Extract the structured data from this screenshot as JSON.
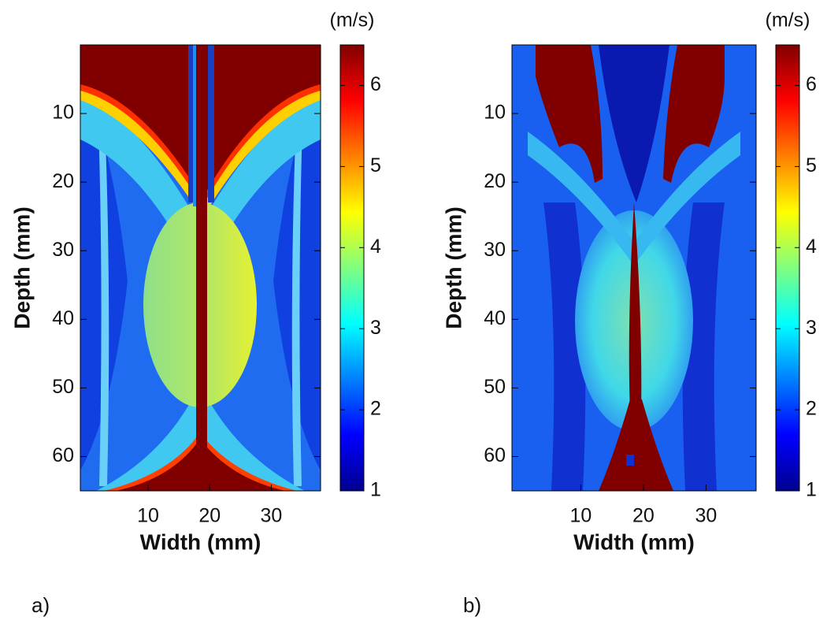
{
  "chart_data": [
    {
      "type": "heatmap",
      "panel_label": "a)",
      "xlabel": "Width (mm)",
      "ylabel": "Depth (mm)",
      "colorbar_label": "(m/s)",
      "colormap": "jet",
      "xlim": [
        -1,
        38
      ],
      "xticks": [
        10,
        20,
        30
      ],
      "ylim": [
        0,
        65
      ],
      "y_reversed": true,
      "yticks": [
        10,
        20,
        30,
        40,
        50,
        60
      ],
      "clim": [
        1,
        6.5
      ],
      "cticks": [
        1,
        2,
        3,
        4,
        5,
        6
      ]
    },
    {
      "type": "heatmap",
      "panel_label": "b)",
      "xlabel": "Width (mm)",
      "ylabel": "Depth (mm)",
      "colorbar_label": "(m/s)",
      "colormap": "jet",
      "xlim": [
        -1,
        38
      ],
      "xticks": [
        10,
        20,
        30
      ],
      "ylim": [
        0,
        65
      ],
      "y_reversed": true,
      "yticks": [
        10,
        20,
        30,
        40,
        50,
        60
      ],
      "clim": [
        1,
        6.5
      ],
      "cticks": [
        1,
        2,
        3,
        4,
        5,
        6
      ]
    }
  ]
}
